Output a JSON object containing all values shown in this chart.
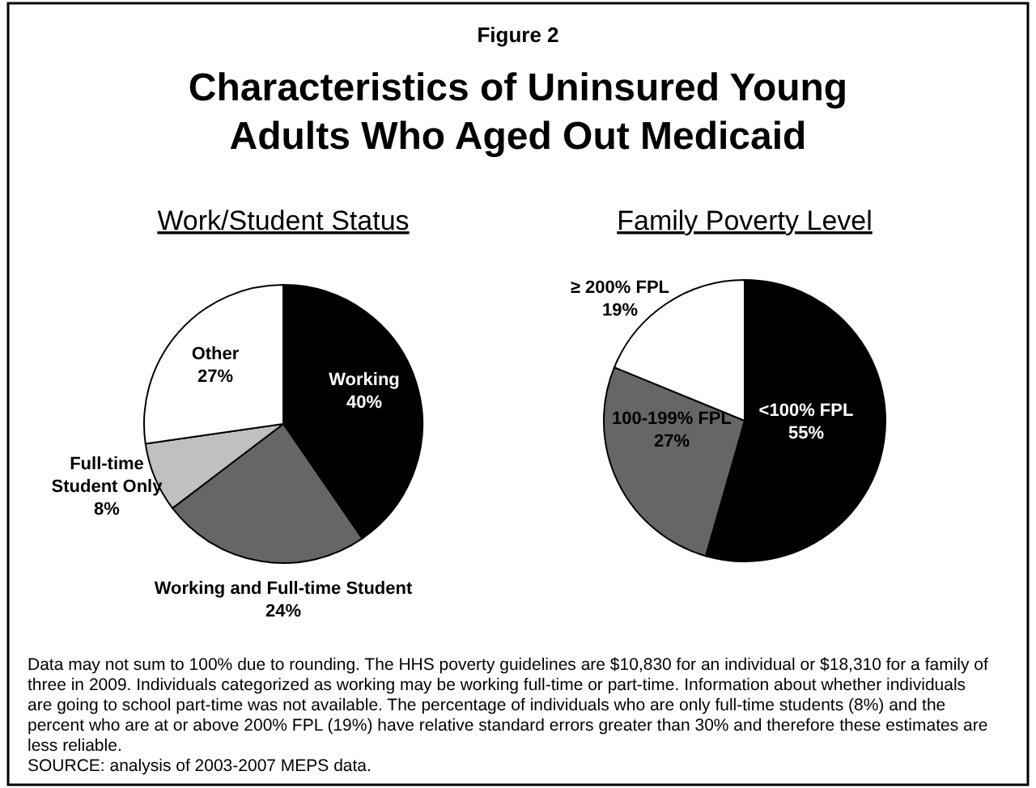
{
  "chart_data": [
    {
      "type": "pie",
      "title": "Work/Student Status",
      "categories": [
        "Working",
        "Working and Full-time Student",
        "Full-time Student Only",
        "Other"
      ],
      "values": [
        40,
        24,
        8,
        27
      ],
      "colors": [
        "#000000",
        "#666666",
        "#c0c0c0",
        "#ffffff"
      ],
      "value_labels": [
        "40%",
        "24%",
        "8%",
        "27%"
      ],
      "annotations": [
        "Figure 2",
        "Characteristics of Uninsured Young Adults Who Aged Out Medicaid",
        "Data may not sum to 100% due to rounding.  The HHS poverty guidelines are $10,830 for an individual or $18,310 for a family of three in 2009.  Individuals categorized as working may be working full-time or part-time.  Information about whether individuals are going to school part-time was not available.  The percentage of individuals who are only full-time students (8%) and the percent who are at or above 200% FPL (19%) have relative standard errors greater than 30% and therefore these estimates are less reliable.",
        "SOURCE: analysis of 2003-2007 MEPS data."
      ]
    },
    {
      "type": "pie",
      "title": "Family Poverty Level",
      "categories": [
        "<100% FPL",
        "100-199% FPL",
        "≥ 200% FPL"
      ],
      "values": [
        55,
        27,
        19
      ],
      "colors": [
        "#000000",
        "#666666",
        "#ffffff"
      ],
      "value_labels": [
        "55%",
        "27%",
        "19%"
      ]
    }
  ]
}
